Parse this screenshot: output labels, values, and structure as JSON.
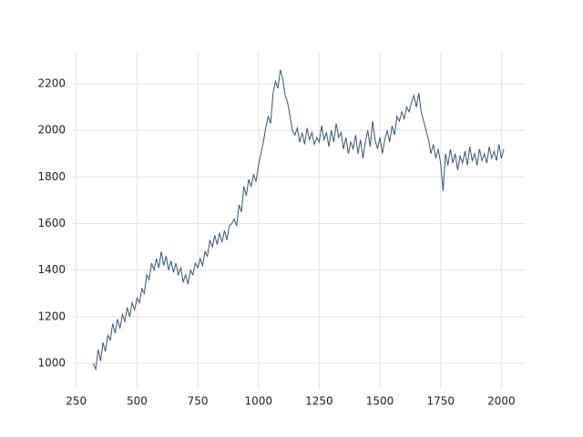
{
  "chart_data": {
    "type": "line",
    "x": [
      320,
      330,
      340,
      350,
      360,
      370,
      380,
      390,
      400,
      410,
      420,
      430,
      440,
      450,
      460,
      470,
      480,
      490,
      500,
      510,
      520,
      530,
      540,
      550,
      560,
      570,
      580,
      590,
      600,
      610,
      620,
      630,
      640,
      650,
      660,
      670,
      680,
      690,
      700,
      710,
      720,
      730,
      740,
      750,
      760,
      770,
      780,
      790,
      800,
      810,
      820,
      830,
      840,
      850,
      860,
      870,
      880,
      890,
      900,
      910,
      920,
      930,
      940,
      950,
      960,
      970,
      980,
      990,
      1000,
      1010,
      1020,
      1030,
      1040,
      1050,
      1060,
      1070,
      1080,
      1090,
      1100,
      1110,
      1120,
      1130,
      1140,
      1150,
      1160,
      1170,
      1180,
      1190,
      1200,
      1210,
      1220,
      1230,
      1240,
      1250,
      1260,
      1270,
      1280,
      1290,
      1300,
      1310,
      1320,
      1330,
      1340,
      1350,
      1360,
      1370,
      1380,
      1390,
      1400,
      1410,
      1420,
      1430,
      1440,
      1450,
      1460,
      1470,
      1480,
      1490,
      1500,
      1510,
      1520,
      1530,
      1540,
      1550,
      1560,
      1570,
      1580,
      1590,
      1600,
      1610,
      1620,
      1630,
      1640,
      1650,
      1660,
      1670,
      1680,
      1690,
      1700,
      1710,
      1720,
      1730,
      1740,
      1750,
      1760,
      1770,
      1780,
      1790,
      1800,
      1810,
      1820,
      1830,
      1840,
      1850,
      1860,
      1870,
      1880,
      1890,
      1900,
      1910,
      1920,
      1930,
      1940,
      1950,
      1960,
      1970,
      1980,
      1990,
      2000,
      2010
    ],
    "values": [
      1000,
      975,
      1060,
      1010,
      1090,
      1050,
      1120,
      1100,
      1170,
      1130,
      1190,
      1150,
      1210,
      1180,
      1240,
      1200,
      1260,
      1230,
      1280,
      1260,
      1320,
      1300,
      1380,
      1360,
      1430,
      1400,
      1450,
      1410,
      1480,
      1420,
      1460,
      1400,
      1440,
      1390,
      1430,
      1380,
      1410,
      1350,
      1380,
      1340,
      1400,
      1380,
      1430,
      1410,
      1450,
      1420,
      1480,
      1460,
      1530,
      1500,
      1550,
      1510,
      1560,
      1520,
      1570,
      1530,
      1590,
      1600,
      1620,
      1590,
      1680,
      1650,
      1760,
      1720,
      1790,
      1760,
      1810,
      1780,
      1850,
      1900,
      1950,
      2010,
      2060,
      2030,
      2160,
      2210,
      2180,
      2260,
      2220,
      2150,
      2120,
      2060,
      2000,
      1980,
      2010,
      1950,
      1990,
      1940,
      2010,
      1960,
      1990,
      1940,
      1970,
      1950,
      2020,
      1960,
      1990,
      1930,
      2000,
      1950,
      2030,
      1970,
      1990,
      1920,
      1970,
      1900,
      1950,
      1920,
      1980,
      1900,
      1960,
      1880,
      1950,
      2000,
      1930,
      2040,
      1960,
      1920,
      1970,
      1900,
      1960,
      2000,
      1950,
      2020,
      1980,
      2060,
      2040,
      2080,
      2050,
      2100,
      2080,
      2120,
      2150,
      2100,
      2160,
      2080,
      2040,
      2000,
      1960,
      1900,
      1940,
      1880,
      1920,
      1860,
      1740,
      1900,
      1850,
      1920,
      1860,
      1900,
      1830,
      1890,
      1860,
      1910,
      1850,
      1930,
      1870,
      1900,
      1850,
      1920,
      1870,
      1900,
      1860,
      1930,
      1880,
      1910,
      1870,
      1940,
      1880,
      1920
    ],
    "color": "#34557a",
    "xlim": [
      236,
      2096
    ],
    "ylim": [
      891,
      2333
    ],
    "xticks": [
      250,
      500,
      750,
      1000,
      1250,
      1500,
      1750,
      2000
    ],
    "yticks": [
      1000,
      1200,
      1400,
      1600,
      1800,
      2000,
      2200
    ],
    "grid": true
  }
}
